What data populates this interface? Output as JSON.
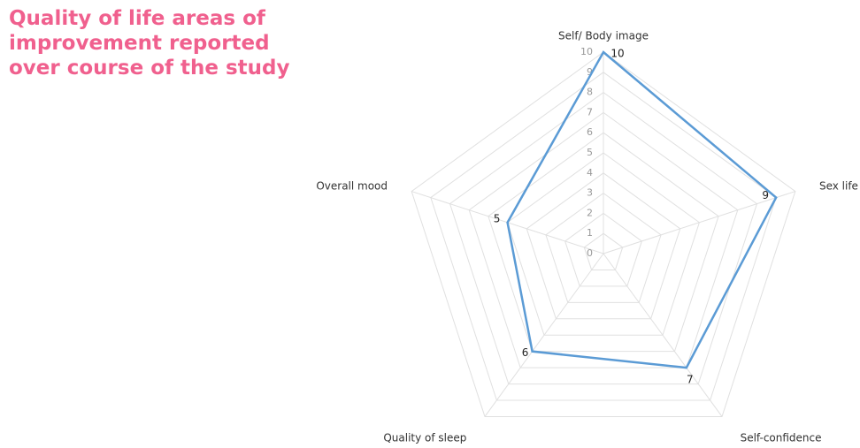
{
  "chart_data": {
    "type": "radar",
    "title": [
      "Quality of life areas of",
      "improvement reported",
      "over course of the study"
    ],
    "categories": [
      "Self/ Body image",
      "Sex life",
      "Self-confidence",
      "Quality of sleep",
      "Overall mood"
    ],
    "values": [
      10,
      9,
      7,
      6,
      5
    ],
    "color": "#5b9bd5",
    "ylim": [
      0,
      10
    ],
    "yticks": [
      0,
      1,
      2,
      3,
      4,
      5,
      6,
      7,
      8,
      9,
      10
    ],
    "grid": true
  }
}
